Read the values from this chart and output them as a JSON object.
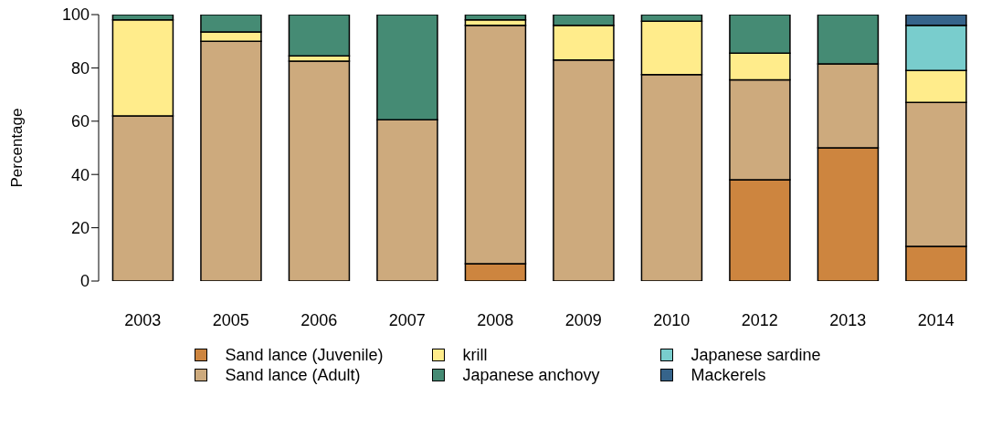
{
  "chart_data": {
    "type": "bar",
    "stacked": true,
    "ylabel": "Percentage",
    "categories": [
      "2003",
      "2005",
      "2006",
      "2007",
      "2008",
      "2009",
      "2010",
      "2012",
      "2013",
      "2014"
    ],
    "series": [
      {
        "name": "Sand lance (Juvenile)",
        "color": "#cd853f",
        "values": [
          0,
          0,
          0,
          0,
          6.5,
          0,
          0,
          38,
          50,
          13
        ]
      },
      {
        "name": "Sand lance (Adult)",
        "color": "#cdaa7d",
        "values": [
          62,
          90,
          82.5,
          60.5,
          89.5,
          83,
          77.5,
          37.5,
          31.5,
          54
        ]
      },
      {
        "name": "krill",
        "color": "#ffec8b",
        "values": [
          36,
          3.5,
          2,
          0,
          2,
          13,
          20,
          10,
          0,
          12
        ]
      },
      {
        "name": "Japanese anchovy",
        "color": "#458b74",
        "values": [
          2,
          6.5,
          15.5,
          39.5,
          2,
          4,
          2.5,
          14.5,
          18.5,
          0
        ]
      },
      {
        "name": "Japanese sardine",
        "color": "#79cdcd",
        "values": [
          0,
          0,
          0,
          0,
          0,
          0,
          0,
          0,
          0,
          17
        ]
      },
      {
        "name": "Mackerels",
        "color": "#36648b",
        "values": [
          0,
          0,
          0,
          0,
          0,
          0,
          0,
          0,
          0,
          4
        ]
      }
    ],
    "ylim": [
      0,
      100
    ],
    "yticks": [
      0,
      20,
      40,
      60,
      80,
      100
    ],
    "grid": false,
    "legend": "bottom"
  }
}
